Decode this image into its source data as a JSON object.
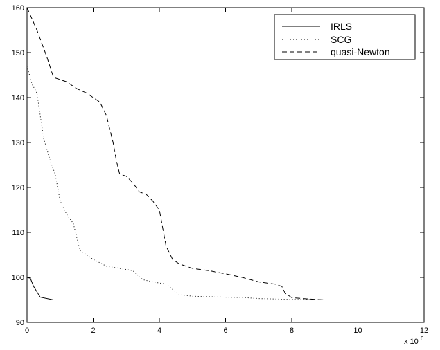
{
  "chart_data": {
    "type": "line",
    "xlim": [
      0,
      12
    ],
    "ylim": [
      90,
      160
    ],
    "x_ticks": [
      0,
      2,
      4,
      6,
      8,
      10,
      12
    ],
    "y_ticks": [
      90,
      100,
      110,
      120,
      130,
      140,
      150,
      160
    ],
    "x_tick_labels": [
      "0",
      "2",
      "4",
      "6",
      "8",
      "10",
      "12"
    ],
    "y_tick_labels": [
      "90",
      "100",
      "110",
      "120",
      "130",
      "140",
      "150",
      "160"
    ],
    "x_multiplier_base": "x 10",
    "x_multiplier_exp": "6",
    "grid": false,
    "legend_position": "top-right",
    "series": [
      {
        "name": "IRLS",
        "style": "solid",
        "x": [
          0,
          0.1,
          0.2,
          0.4,
          0.8,
          1.2,
          1.6,
          2.05
        ],
        "y": [
          100,
          99.8,
          98,
          95.6,
          95,
          95,
          95,
          95
        ]
      },
      {
        "name": "SCG",
        "style": "dotted",
        "x": [
          0,
          0.15,
          0.3,
          0.5,
          0.7,
          0.85,
          1.0,
          1.2,
          1.4,
          1.6,
          1.8,
          2.0,
          2.4,
          2.8,
          3.2,
          3.5,
          3.8,
          4.2,
          4.6,
          5.0,
          5.5,
          6.0,
          6.6,
          7.0,
          7.5,
          8.0,
          8.5,
          9.0,
          10.0,
          11.2
        ],
        "y": [
          147,
          143,
          141,
          131,
          126,
          123,
          117,
          114,
          112,
          106,
          105,
          104,
          102.5,
          102,
          101.5,
          99.5,
          99,
          98.5,
          96.2,
          95.8,
          95.7,
          95.6,
          95.5,
          95.3,
          95.2,
          95.1,
          95.1,
          95,
          95,
          95
        ]
      },
      {
        "name": "quasi-Newton",
        "style": "dashed",
        "x": [
          0,
          0.3,
          0.6,
          0.8,
          1.0,
          1.2,
          1.5,
          1.8,
          2.0,
          2.2,
          2.4,
          2.6,
          2.7,
          2.8,
          3.0,
          3.2,
          3.4,
          3.6,
          3.8,
          4.0,
          4.2,
          4.4,
          4.6,
          5.0,
          5.5,
          6.0,
          6.5,
          7.0,
          7.5,
          7.7,
          7.8,
          8.0,
          8.5,
          9.0,
          10.0,
          11.2
        ],
        "y": [
          160,
          155,
          149,
          144.5,
          144,
          143.5,
          142,
          141,
          140,
          139,
          136,
          130,
          126,
          123,
          122.5,
          121,
          119,
          118.5,
          117,
          115,
          107,
          104,
          103,
          102,
          101.5,
          100.8,
          100,
          99,
          98.5,
          98,
          96.5,
          95.5,
          95.2,
          95,
          95,
          95
        ]
      }
    ]
  }
}
